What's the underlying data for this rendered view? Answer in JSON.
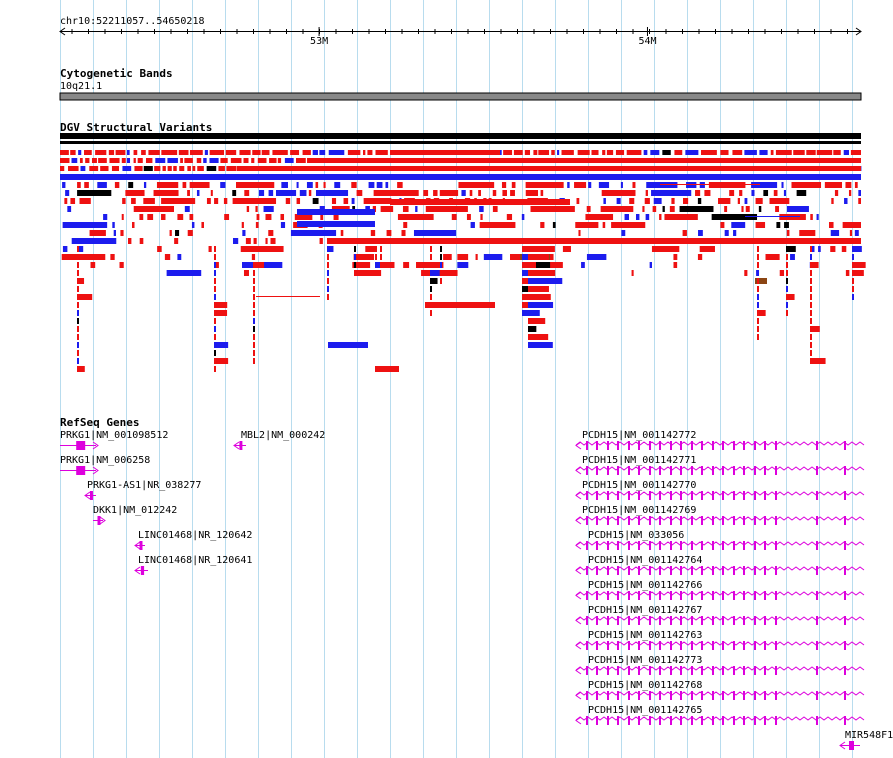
{
  "region": {
    "label": "chr10:52211057..54650218",
    "start": 52211057,
    "end": 54650218
  },
  "ruler": {
    "ticks": [
      {
        "pos": 53000000,
        "label": "53M"
      },
      {
        "pos": 54000000,
        "label": "54M"
      }
    ]
  },
  "tracks": {
    "cytoband": {
      "title": "Cytogenetic Bands",
      "band": "10q21.1"
    },
    "dgv": {
      "title": "DGV Structural Variants"
    },
    "refseq": {
      "title": "RefSeq Genes"
    }
  },
  "colors": {
    "loss": "#ee1111",
    "gain": "#1c1cee",
    "both": "#000000",
    "complex": "#8b4513",
    "gene": "#dd00dd",
    "grid": "#b8dcee",
    "band": "#888888"
  },
  "genes": [
    {
      "name": "PRKG1|NM_001098512",
      "start": 52211057,
      "end": 52300000,
      "strand": "+"
    },
    {
      "name": "PRKG1|NM_006258",
      "start": 52211057,
      "end": 52300000,
      "strand": "+"
    },
    {
      "name": "PRKG1-AS1|NR_038277",
      "start": 52290000,
      "end": 52320000,
      "strand": "-"
    },
    {
      "name": "DKK1|NM_012242",
      "start": 52310000,
      "end": 52325000,
      "strand": "+"
    },
    {
      "name": "LINC01468|NR_120642",
      "start": 52450000,
      "end": 52480000,
      "strand": "-"
    },
    {
      "name": "LINC01468|NR_120641",
      "start": 52450000,
      "end": 52480000,
      "strand": "-"
    },
    {
      "name": "MBL2|NM_000242",
      "start": 52730000,
      "end": 52760000,
      "strand": "-"
    },
    {
      "name": "PCDH15|NM_001142772",
      "start": 53790000,
      "end": 54650218,
      "strand": "-"
    },
    {
      "name": "PCDH15|NM_001142771",
      "start": 53790000,
      "end": 54650218,
      "strand": "-"
    },
    {
      "name": "PCDH15|NM_001142770",
      "start": 53790000,
      "end": 54650218,
      "strand": "-"
    },
    {
      "name": "PCDH15|NM_001142769",
      "start": 53790000,
      "end": 54650218,
      "strand": "-"
    },
    {
      "name": "PCDH15|NM_033056",
      "start": 53790000,
      "end": 54650218,
      "strand": "-"
    },
    {
      "name": "PCDH15|NM_001142764",
      "start": 53790000,
      "end": 54650218,
      "strand": "-"
    },
    {
      "name": "PCDH15|NM_001142766",
      "start": 53790000,
      "end": 54650218,
      "strand": "-"
    },
    {
      "name": "PCDH15|NM_001142767",
      "start": 53790000,
      "end": 54650218,
      "strand": "-"
    },
    {
      "name": "PCDH15|NM_001142763",
      "start": 53790000,
      "end": 54650218,
      "strand": "-"
    },
    {
      "name": "PCDH15|NM_001142773",
      "start": 53790000,
      "end": 54650218,
      "strand": "-"
    },
    {
      "name": "PCDH15|NM_001142768",
      "start": 53790000,
      "end": 54650218,
      "strand": "-"
    },
    {
      "name": "PCDH15|NM_001142765",
      "start": 53790000,
      "end": 54650218,
      "strand": "-"
    },
    {
      "name": "MIR548F1",
      "start": 54600000,
      "end": 54650218,
      "strand": "-"
    }
  ]
}
